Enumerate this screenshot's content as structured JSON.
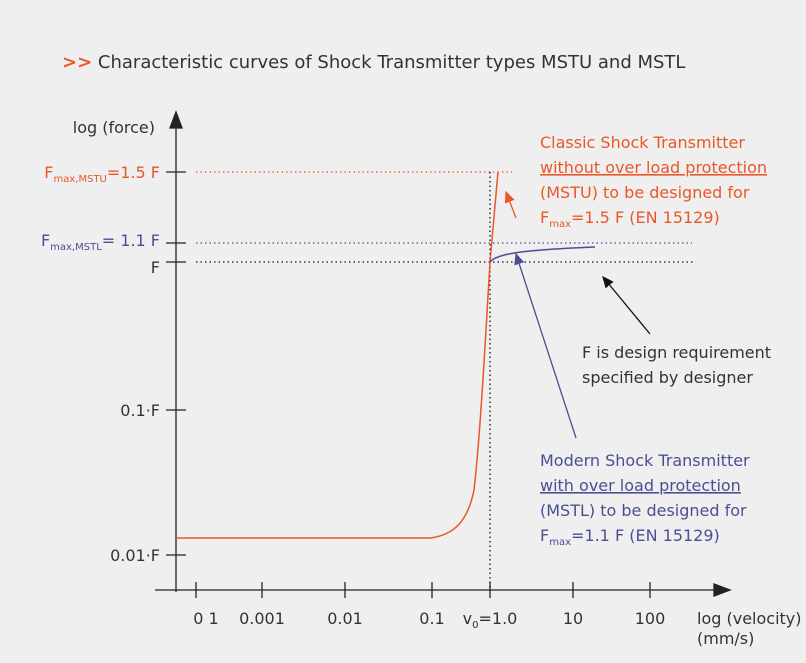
{
  "title": {
    "prefix": ">>",
    "text": "Characteristic curves of Shock Transmitter types MSTU and MSTL"
  },
  "y_axis": {
    "label": "log (force)",
    "ticks": [
      {
        "main": "F",
        "sub": "max,MSTU",
        "rest": "=1.5 F"
      },
      {
        "main": "F",
        "sub": "max,MSTL",
        "rest": "= 1.1 F"
      },
      {
        "main": "F"
      },
      {
        "main": "0.1·F"
      },
      {
        "main": "0.01·F"
      }
    ]
  },
  "x_axis": {
    "label": "log (velocity)",
    "unit": "(mm/s)",
    "ticks": [
      {
        "main": "0 1"
      },
      {
        "main": "0.001"
      },
      {
        "main": "0.01"
      },
      {
        "main": "0.1"
      },
      {
        "main": "v",
        "sub": "0",
        "rest": "=1.0"
      },
      {
        "main": "10"
      },
      {
        "main": "100"
      }
    ]
  },
  "annotations": {
    "mstu": {
      "line1": "Classic Shock Transmitter",
      "line2": "without over load protection",
      "line3": "(MSTU) to be designed for",
      "f": "F",
      "sub": "max",
      "rest": "=1.5 F (EN 15129)"
    },
    "design": {
      "line1": "F is design requirement",
      "line2": "specified by designer"
    },
    "mstl": {
      "line1": "Modern Shock Transmitter",
      "line2": "with over load protection",
      "line3": "(MSTL) to be designed for",
      "f": "F",
      "sub": "max",
      "rest": "=1.1 F (EN 15129)"
    }
  }
}
